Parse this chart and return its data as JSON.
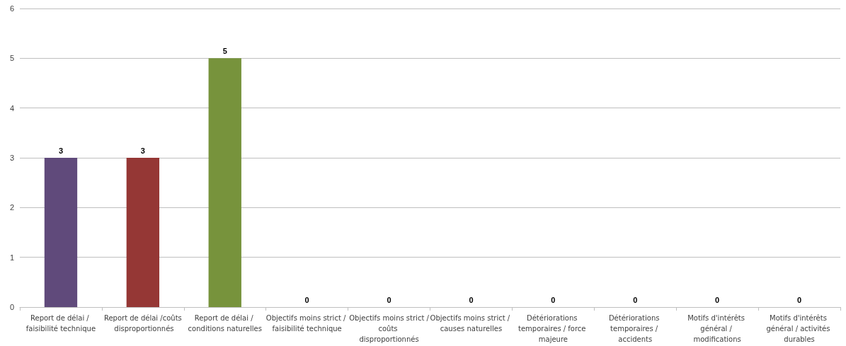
{
  "chart_data": {
    "type": "bar",
    "categories": [
      "Report de délai / faisibilité technique",
      "Report de délai /coûts disproportionnés",
      "Report de délai / conditions naturelles",
      "Objectifs moins strict / faisibilité technique",
      "Objectifs moins strict /coûts disproportionnés",
      "Objectifs moins strict / causes naturelles",
      "Détériorations temporaires / force majeure",
      "Détériorations temporaires / accidents",
      "Motifs d'intérêts général / modifications",
      "Motifs d'intérêts général / activités durables"
    ],
    "values": [
      3,
      3,
      5,
      0,
      0,
      0,
      0,
      0,
      0,
      0
    ],
    "colors": [
      "#604a7b",
      "#953735",
      "#77933c",
      "#e46c0a",
      "#31859c",
      "#4f81bd",
      "#604a7b",
      "#953735",
      "#77933c",
      "#e46c0a"
    ],
    "ylim": [
      0,
      6
    ],
    "yticks": [
      0,
      1,
      2,
      3,
      4,
      5,
      6
    ],
    "grid": "y",
    "data_labels": true
  }
}
